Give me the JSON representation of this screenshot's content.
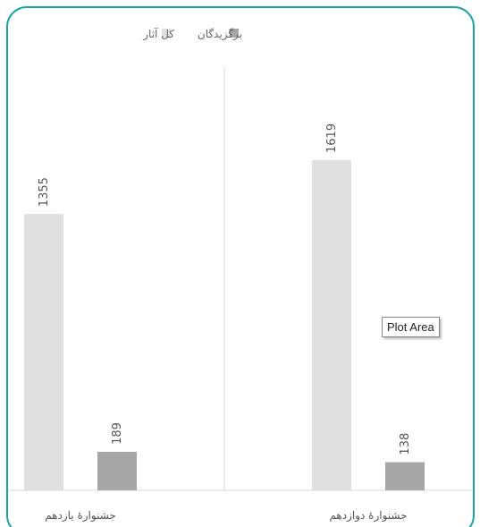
{
  "tooltip": {
    "text": "Plot Area"
  },
  "colors": {
    "frame": "#1aa5a5",
    "series_total": "#e0e0e0",
    "series_selected": "#a6a6a6",
    "gridline": "#d9d9d9",
    "axis": "#d9d9d9"
  },
  "chart_data": {
    "type": "bar",
    "categories": [
      "جشنوارهٔ دوازدهم",
      "جشنوارهٔ یازدهم"
    ],
    "series": [
      {
        "name": "کل آثار",
        "values": [
          1619,
          1355
        ]
      },
      {
        "name": "برگزیدگان",
        "values": [
          138,
          189
        ]
      }
    ],
    "data_labels": true,
    "ylim": [
      0,
      1900
    ],
    "grid": false,
    "legend": "top",
    "direction": "rtl"
  }
}
